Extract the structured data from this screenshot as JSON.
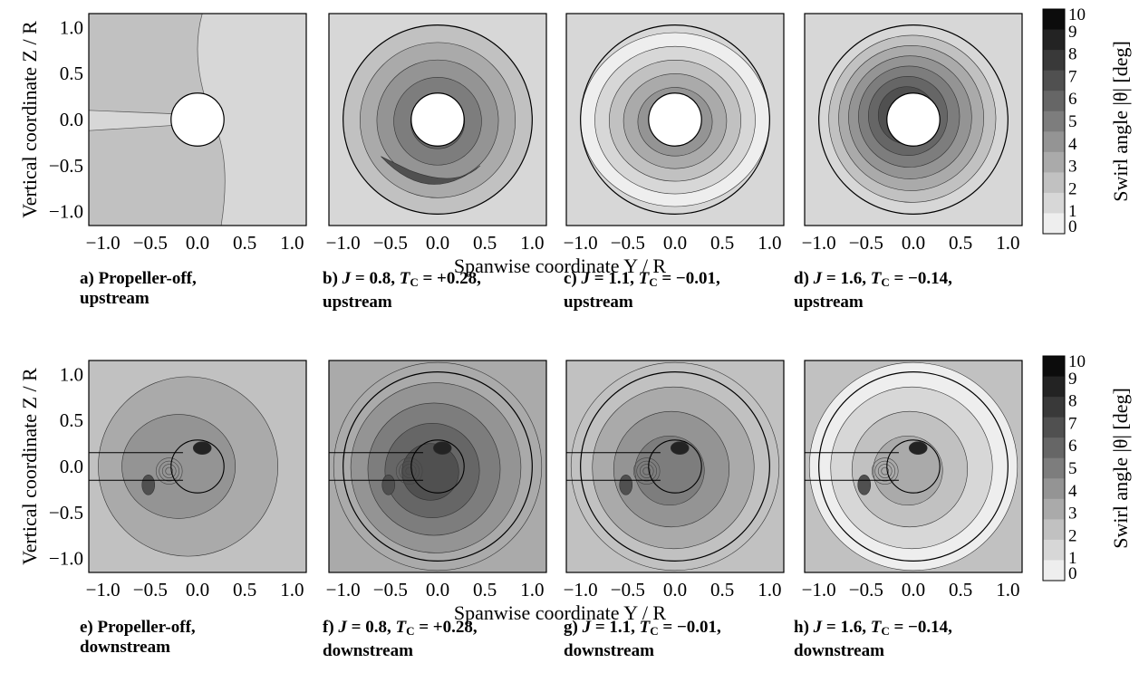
{
  "chart_data": {
    "type": "heatmap",
    "figure": "swirl-angle contour maps",
    "rows": [
      {
        "row": "upstream",
        "panels": [
          0,
          1,
          2,
          3
        ]
      },
      {
        "row": "downstream",
        "panels": [
          4,
          5,
          6,
          7
        ]
      }
    ],
    "xlabel": "Spanwise coordinate Y / R",
    "ylabel": "Vertical coordinate Z / R",
    "xticks": [
      "−1.0",
      "−0.5",
      "0.0",
      "0.5",
      "1.0"
    ],
    "yticks": [
      "1.0",
      "0.5",
      "0.0",
      "−0.5",
      "−1.0"
    ],
    "xlim": [
      -1.15,
      1.15
    ],
    "ylim": [
      -1.15,
      1.15
    ],
    "colorbar": {
      "label": "Swirl angle |θ| [deg]",
      "ticks": [
        "10",
        "9",
        "8",
        "7",
        "6",
        "5",
        "4",
        "3",
        "2",
        "1",
        "0"
      ],
      "range": [
        0,
        10
      ],
      "colormap": "grayscale, white = 0, black = 10"
    },
    "panels": [
      {
        "id": "a",
        "caption_letter": "a)",
        "caption_main": "Propeller-off,",
        "caption_second": "upstream",
        "J": "",
        "TC": "",
        "disk": false,
        "nacelle": "solid",
        "dominant_level": 2
      },
      {
        "id": "b",
        "caption_letter": "b)",
        "caption_main": "",
        "caption_second": "upstream",
        "J": "0.8",
        "TC": "+0.28",
        "disk": true,
        "nacelle": "solid",
        "dominant_level": 6
      },
      {
        "id": "c",
        "caption_letter": "c)",
        "caption_main": "",
        "caption_second": "upstream",
        "J": "1.1",
        "TC": "−0.01",
        "disk": true,
        "nacelle": "solid",
        "dominant_level": 2
      },
      {
        "id": "d",
        "caption_letter": "d)",
        "caption_main": "",
        "caption_second": "upstream",
        "J": "1.6",
        "TC": "−0.14",
        "disk": true,
        "nacelle": "solid",
        "dominant_level": 5
      },
      {
        "id": "e",
        "caption_letter": "e)",
        "caption_main": "Propeller-off,",
        "caption_second": "downstream",
        "J": "",
        "TC": "",
        "disk": false,
        "nacelle": "outline",
        "dominant_level": 3
      },
      {
        "id": "f",
        "caption_letter": "f)",
        "caption_main": "",
        "caption_second": "downstream",
        "J": "0.8",
        "TC": "+0.28",
        "disk": true,
        "nacelle": "outline",
        "dominant_level": 6
      },
      {
        "id": "g",
        "caption_letter": "g)",
        "caption_main": "",
        "caption_second": "downstream",
        "J": "1.1",
        "TC": "−0.01",
        "disk": true,
        "nacelle": "outline",
        "dominant_level": 3
      },
      {
        "id": "h",
        "caption_letter": "h)",
        "caption_main": "",
        "caption_second": "downstream",
        "J": "1.6",
        "TC": "−0.14",
        "disk": true,
        "nacelle": "outline",
        "dominant_level": 1
      }
    ]
  },
  "captions": {
    "j_symbol": "J",
    "tc_symbol": "T",
    "tc_sub": "C",
    "eq": " = ",
    "sep": ", "
  }
}
